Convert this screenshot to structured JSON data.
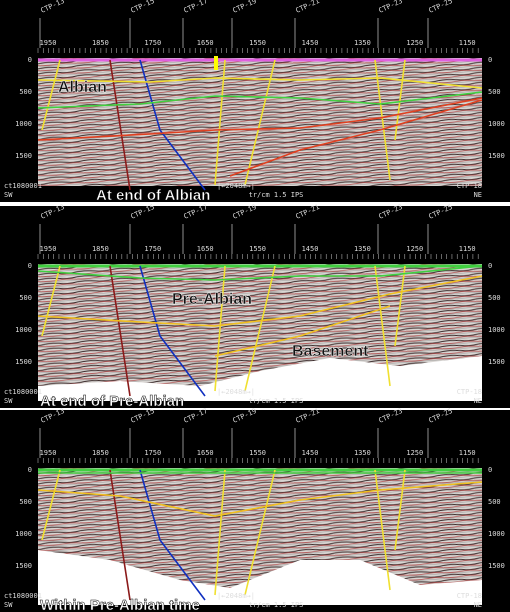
{
  "wells": [
    "CTP-13",
    "CTP-15",
    "CTP-17",
    "CTP-19",
    "CTP-21",
    "CTP-23",
    "CTP-25"
  ],
  "shotpoints": [
    "1950",
    "1850",
    "1750",
    "1650",
    "1550",
    "1450",
    "1350",
    "1250",
    "1150"
  ],
  "depths": [
    "0",
    "500",
    "1000",
    "1500"
  ],
  "footer": {
    "line": "ct1080001",
    "sw": "SW",
    "scale": "|←2048m→|",
    "speed": "tr/cm 1.5 IPS",
    "end_well": "CTP-18",
    "ne": "NE"
  },
  "panels": [
    {
      "caption": "At end of Albian",
      "labels": [
        "Albian"
      ]
    },
    {
      "caption": "At end of Pre-Albian",
      "labels": [
        "Pre-Albian",
        "Basement"
      ]
    },
    {
      "caption": "Within Pre-Albian time"
    }
  ]
}
